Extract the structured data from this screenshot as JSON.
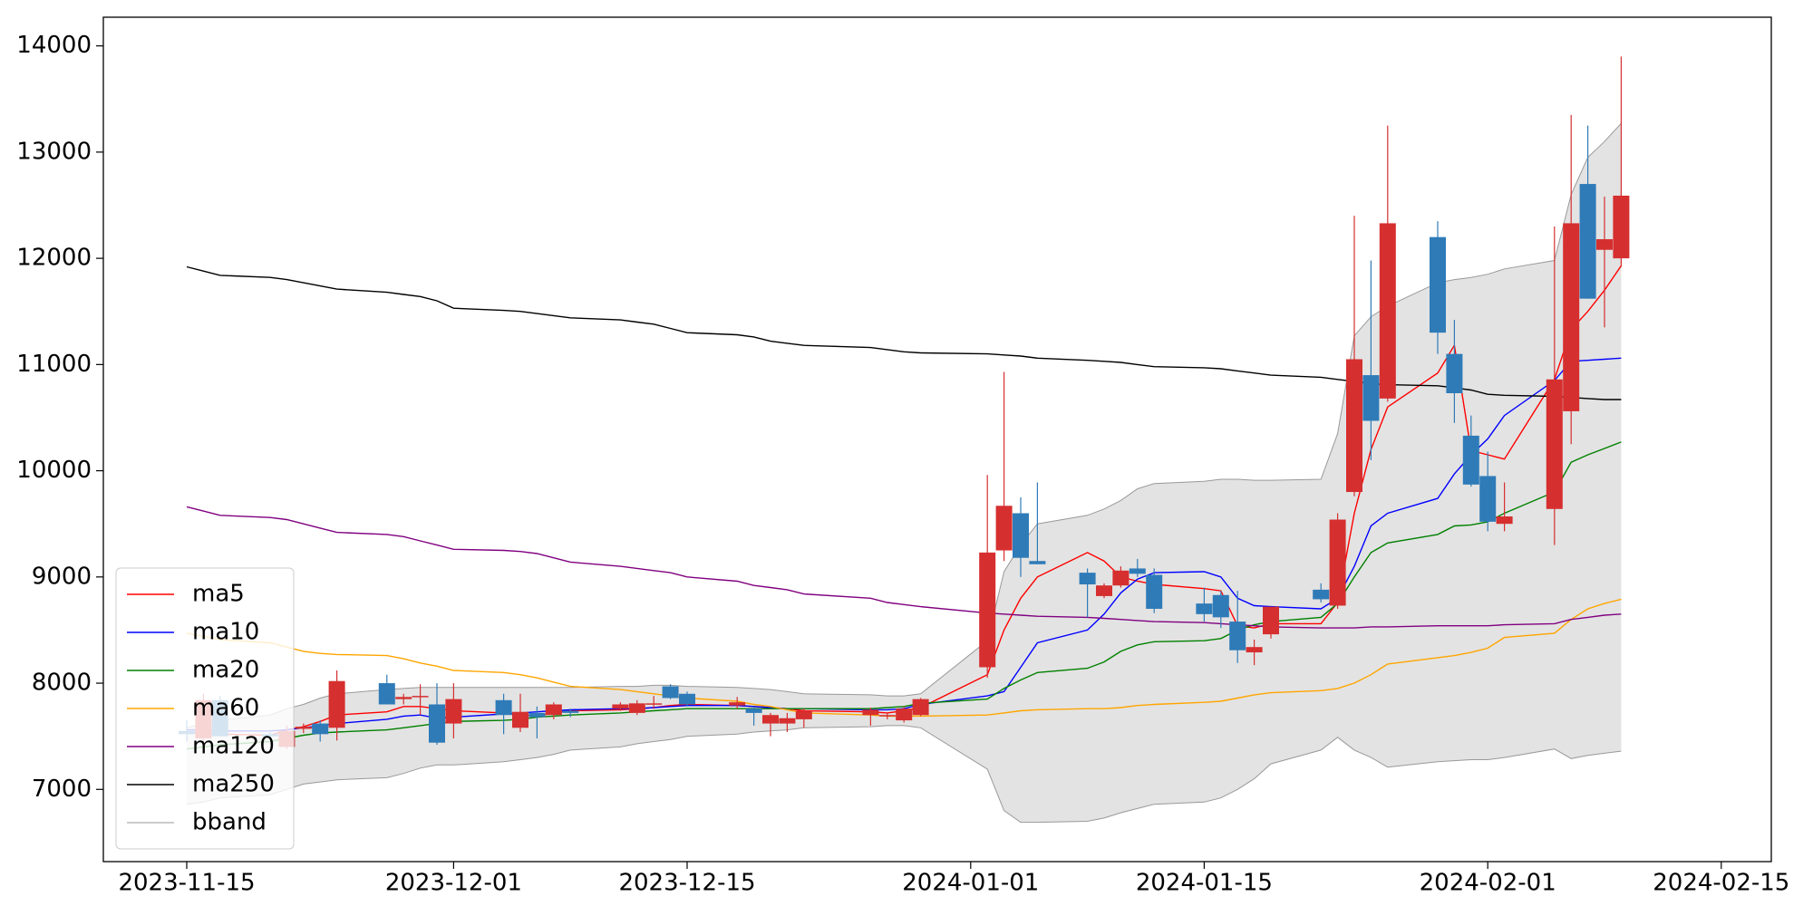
{
  "chart_data": {
    "type": "candlestick",
    "x": [
      "2023-11-15",
      "2023-11-16",
      "2023-11-17",
      "2023-11-20",
      "2023-11-21",
      "2023-11-22",
      "2023-11-23",
      "2023-11-24",
      "2023-11-27",
      "2023-11-28",
      "2023-11-29",
      "2023-11-30",
      "2023-12-01",
      "2023-12-04",
      "2023-12-05",
      "2023-12-06",
      "2023-12-07",
      "2023-12-08",
      "2023-12-11",
      "2023-12-12",
      "2023-12-13",
      "2023-12-14",
      "2023-12-15",
      "2023-12-18",
      "2023-12-19",
      "2023-12-20",
      "2023-12-21",
      "2023-12-22",
      "2023-12-26",
      "2023-12-27",
      "2023-12-28",
      "2023-12-29",
      "2024-01-02",
      "2024-01-03",
      "2024-01-04",
      "2024-01-05",
      "2024-01-08",
      "2024-01-09",
      "2024-01-10",
      "2024-01-11",
      "2024-01-12",
      "2024-01-15",
      "2024-01-16",
      "2024-01-17",
      "2024-01-18",
      "2024-01-19",
      "2024-01-22",
      "2024-01-23",
      "2024-01-24",
      "2024-01-25",
      "2024-01-26",
      "2024-01-29",
      "2024-01-30",
      "2024-01-31",
      "2024-02-01",
      "2024-02-02",
      "2024-02-05",
      "2024-02-06",
      "2024-02-07",
      "2024-02-08",
      "2024-02-09"
    ],
    "open": [
      7550,
      7480,
      7840,
      7520,
      7400,
      7570,
      7620,
      7580,
      8000,
      7850,
      7870,
      7800,
      7620,
      7840,
      7580,
      7720,
      7700,
      7740,
      7760,
      7720,
      7800,
      7970,
      7900,
      7790,
      7760,
      7620,
      7620,
      7660,
      7700,
      7700,
      7650,
      7700,
      8150,
      9250,
      9600,
      9150,
      9040,
      8820,
      8920,
      9080,
      9020,
      8750,
      8830,
      8580,
      8290,
      8460,
      8880,
      8730,
      9800,
      10900,
      10680,
      12200,
      11100,
      10330,
      9950,
      9500,
      9640,
      10560,
      12700,
      12080,
      12000
    ],
    "high": [
      7650,
      7900,
      7880,
      7560,
      7600,
      7620,
      7650,
      8120,
      8080,
      7900,
      7990,
      8000,
      8000,
      7900,
      7900,
      7780,
      7820,
      7760,
      7820,
      7840,
      7880,
      7990,
      7920,
      7870,
      7780,
      7720,
      7720,
      7760,
      7770,
      7720,
      7780,
      7860,
      9960,
      10930,
      9750,
      9890,
      9080,
      8940,
      9100,
      9170,
      9080,
      8900,
      8870,
      8870,
      8410,
      8700,
      8940,
      9600,
      12400,
      11980,
      13250,
      12350,
      11420,
      10520,
      10180,
      9890,
      12300,
      13350,
      13250,
      12580,
      13900
    ],
    "low": [
      7450,
      7450,
      7500,
      7480,
      7380,
      7530,
      7450,
      7460,
      7800,
      7800,
      7700,
      7420,
      7480,
      7520,
      7540,
      7480,
      7660,
      7680,
      7740,
      7700,
      7760,
      7850,
      7780,
      7760,
      7600,
      7500,
      7540,
      7580,
      7600,
      7660,
      7630,
      7690,
      8050,
      9150,
      9000,
      9120,
      8620,
      8800,
      8900,
      9000,
      8660,
      8580,
      8520,
      8190,
      8170,
      8420,
      8760,
      8700,
      9760,
      10100,
      10650,
      11100,
      10450,
      9850,
      9430,
      9430,
      9300,
      10250,
      11620,
      11350,
      11920
    ],
    "close": [
      7520,
      7840,
      7500,
      7500,
      7550,
      7590,
      7520,
      8020,
      7800,
      7870,
      7880,
      7440,
      7850,
      7700,
      7730,
      7680,
      7800,
      7720,
      7800,
      7810,
      7810,
      7860,
      7800,
      7820,
      7720,
      7700,
      7670,
      7740,
      7750,
      7700,
      7760,
      7850,
      9230,
      9670,
      9180,
      9120,
      8930,
      8920,
      9060,
      9030,
      8700,
      8650,
      8620,
      8310,
      8340,
      8720,
      8790,
      9540,
      11050,
      10470,
      12330,
      11300,
      10730,
      9870,
      9520,
      9570,
      10860,
      12330,
      11620,
      12180,
      12590
    ],
    "up_color": "#d62f2f",
    "down_color": "#2f7bb8",
    "series": [
      {
        "name": "ma5",
        "color": "#ff0000",
        "values": [
          7540,
          7530,
          7520,
          7510,
          7560,
          7590,
          7640,
          7700,
          7730,
          7780,
          7780,
          7760,
          7740,
          7720,
          7700,
          7690,
          7720,
          7740,
          7750,
          7760,
          7770,
          7790,
          7800,
          7790,
          7780,
          7770,
          7760,
          7740,
          7730,
          7720,
          7740,
          7770,
          8080,
          8500,
          8800,
          9000,
          9230,
          9150,
          9000,
          8960,
          8930,
          8890,
          8870,
          8540,
          8520,
          8560,
          8560,
          8760,
          9600,
          10200,
          10600,
          10920,
          11180,
          10190,
          10150,
          10110,
          10860,
          11330,
          11500,
          11700,
          11930
        ]
      },
      {
        "name": "ma10",
        "color": "#0000ff",
        "values": [
          7560,
          7560,
          7550,
          7550,
          7560,
          7580,
          7600,
          7620,
          7660,
          7690,
          7700,
          7670,
          7680,
          7710,
          7720,
          7730,
          7740,
          7750,
          7760,
          7760,
          7770,
          7780,
          7790,
          7790,
          7780,
          7770,
          7760,
          7760,
          7750,
          7750,
          7760,
          7800,
          7880,
          7920,
          8150,
          8380,
          8500,
          8650,
          8850,
          8980,
          9040,
          9050,
          9000,
          8800,
          8730,
          8720,
          8700,
          8800,
          9100,
          9480,
          9600,
          9740,
          9970,
          10150,
          10300,
          10520,
          10850,
          11030,
          11040,
          11050,
          11060
        ]
      },
      {
        "name": "ma20",
        "color": "#008000",
        "values": [
          7380,
          7400,
          7420,
          7450,
          7480,
          7510,
          7530,
          7540,
          7560,
          7580,
          7600,
          7620,
          7640,
          7650,
          7660,
          7680,
          7690,
          7700,
          7720,
          7730,
          7740,
          7750,
          7760,
          7760,
          7760,
          7760,
          7760,
          7760,
          7760,
          7770,
          7780,
          7810,
          7850,
          7950,
          8030,
          8100,
          8140,
          8200,
          8300,
          8360,
          8390,
          8400,
          8420,
          8500,
          8550,
          8580,
          8620,
          8750,
          9000,
          9230,
          9320,
          9400,
          9480,
          9490,
          9520,
          9600,
          9800,
          10080,
          10150,
          10210,
          10270
        ]
      },
      {
        "name": "ma60",
        "color": "#ffa500",
        "values": [
          8470,
          8440,
          8410,
          8380,
          8340,
          8300,
          8280,
          8270,
          8260,
          8230,
          8190,
          8160,
          8120,
          8100,
          8080,
          8050,
          8010,
          7970,
          7940,
          7920,
          7900,
          7880,
          7860,
          7830,
          7800,
          7780,
          7750,
          7720,
          7700,
          7690,
          7690,
          7690,
          7700,
          7720,
          7740,
          7750,
          7760,
          7760,
          7770,
          7790,
          7800,
          7820,
          7830,
          7860,
          7890,
          7910,
          7930,
          7950,
          8000,
          8080,
          8180,
          8240,
          8260,
          8290,
          8330,
          8430,
          8470,
          8600,
          8700,
          8750,
          8790
        ]
      },
      {
        "name": "ma120",
        "color": "#800080",
        "values": [
          9660,
          9620,
          9580,
          9560,
          9540,
          9500,
          9460,
          9420,
          9400,
          9380,
          9340,
          9300,
          9260,
          9250,
          9240,
          9220,
          9180,
          9140,
          9100,
          9080,
          9060,
          9040,
          9000,
          8960,
          8920,
          8900,
          8880,
          8840,
          8800,
          8760,
          8740,
          8720,
          8660,
          8650,
          8640,
          8630,
          8620,
          8610,
          8600,
          8590,
          8580,
          8570,
          8560,
          8550,
          8540,
          8530,
          8520,
          8520,
          8520,
          8530,
          8530,
          8540,
          8540,
          8540,
          8540,
          8550,
          8560,
          8600,
          8620,
          8640,
          8650
        ]
      },
      {
        "name": "ma250",
        "color": "#000000",
        "values": [
          11920,
          11880,
          11840,
          11820,
          11800,
          11770,
          11740,
          11710,
          11680,
          11660,
          11640,
          11600,
          11530,
          11510,
          11500,
          11480,
          11460,
          11440,
          11420,
          11400,
          11380,
          11340,
          11300,
          11280,
          11260,
          11220,
          11200,
          11180,
          11160,
          11140,
          11120,
          11110,
          11100,
          11090,
          11080,
          11060,
          11040,
          11030,
          11020,
          11000,
          10980,
          10970,
          10960,
          10940,
          10920,
          10900,
          10880,
          10860,
          10840,
          10820,
          10810,
          10800,
          10780,
          10760,
          10720,
          10710,
          10700,
          10690,
          10680,
          10670,
          10670
        ]
      }
    ],
    "bband": {
      "name": "bband",
      "color": "#999999",
      "fill": "#e3e3e3",
      "upper": [
        7580,
        7620,
        7650,
        7700,
        7760,
        7800,
        7860,
        7900,
        7940,
        7950,
        7960,
        7960,
        7960,
        7960,
        7960,
        7960,
        7960,
        7960,
        7970,
        7970,
        7980,
        7980,
        7970,
        7960,
        7950,
        7940,
        7920,
        7900,
        7890,
        7880,
        7880,
        7900,
        8400,
        9050,
        9300,
        9500,
        9580,
        9640,
        9720,
        9830,
        9880,
        9900,
        9920,
        9920,
        9910,
        9910,
        9920,
        10350,
        11270,
        11450,
        11550,
        11770,
        11800,
        11820,
        11850,
        11900,
        11980,
        12600,
        12950,
        13100,
        13270
      ],
      "lower": [
        6860,
        6880,
        6920,
        6950,
        7000,
        7050,
        7070,
        7090,
        7110,
        7150,
        7200,
        7230,
        7230,
        7260,
        7280,
        7300,
        7330,
        7370,
        7400,
        7430,
        7450,
        7470,
        7500,
        7520,
        7540,
        7550,
        7560,
        7580,
        7590,
        7600,
        7600,
        7580,
        7190,
        6800,
        6690,
        6690,
        6700,
        6730,
        6780,
        6820,
        6860,
        6880,
        6920,
        7000,
        7100,
        7240,
        7370,
        7490,
        7370,
        7300,
        7210,
        7260,
        7270,
        7280,
        7280,
        7300,
        7380,
        7290,
        7320,
        7340,
        7360
      ]
    },
    "xlim": [
      "2023-11-10",
      "2024-02-18"
    ],
    "xticks": [
      "2023-11-15",
      "2023-12-01",
      "2023-12-15",
      "2024-01-01",
      "2024-01-15",
      "2024-02-01",
      "2024-02-15"
    ],
    "ylim": [
      6320,
      14270
    ],
    "yticks": [
      7000,
      8000,
      9000,
      10000,
      11000,
      12000,
      13000,
      14000
    ],
    "legend": "lower left"
  }
}
